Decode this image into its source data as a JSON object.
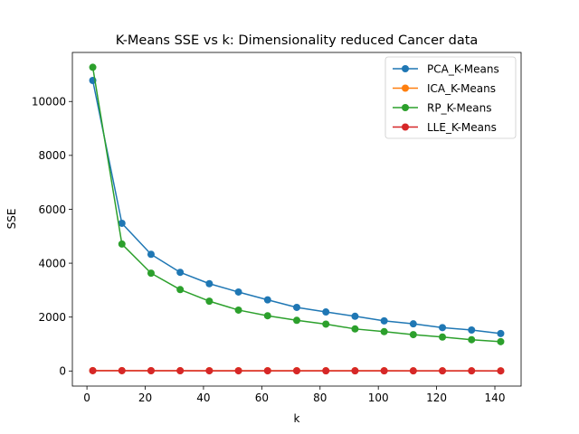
{
  "chart_data": {
    "type": "line",
    "title": "K-Means SSE vs k: Dimensionality reduced Cancer data",
    "xlabel": "k",
    "ylabel": "SSE",
    "xlim": [
      -5,
      149
    ],
    "ylim": [
      -560,
      11820
    ],
    "x_ticks": [
      0,
      20,
      40,
      60,
      80,
      100,
      120,
      140
    ],
    "y_ticks": [
      0,
      2000,
      4000,
      6000,
      8000,
      10000
    ],
    "legend_position": "top-right",
    "grid": false,
    "x": [
      2,
      12,
      22,
      32,
      42,
      52,
      62,
      72,
      82,
      92,
      102,
      112,
      122,
      132,
      142
    ],
    "series": [
      {
        "name": "PCA_K-Means",
        "color": "#1f77b4",
        "values": [
          10780,
          5480,
          4330,
          3660,
          3240,
          2930,
          2640,
          2360,
          2190,
          2030,
          1860,
          1750,
          1610,
          1520,
          1390
        ]
      },
      {
        "name": "ICA_K-Means",
        "color": "#ff7f0e",
        "values": [
          14,
          13,
          12,
          12,
          11,
          11,
          10,
          10,
          9,
          9,
          9,
          8,
          8,
          8,
          7
        ]
      },
      {
        "name": "RP_K-Means",
        "color": "#2ca02c",
        "values": [
          11270,
          4710,
          3630,
          3020,
          2590,
          2260,
          2050,
          1880,
          1740,
          1560,
          1460,
          1350,
          1260,
          1160,
          1090
        ]
      },
      {
        "name": "LLE_K-Means",
        "color": "#d62728",
        "values": [
          12,
          11,
          10,
          9,
          8,
          8,
          7,
          7,
          6,
          6,
          6,
          5,
          5,
          5,
          4
        ]
      }
    ]
  }
}
